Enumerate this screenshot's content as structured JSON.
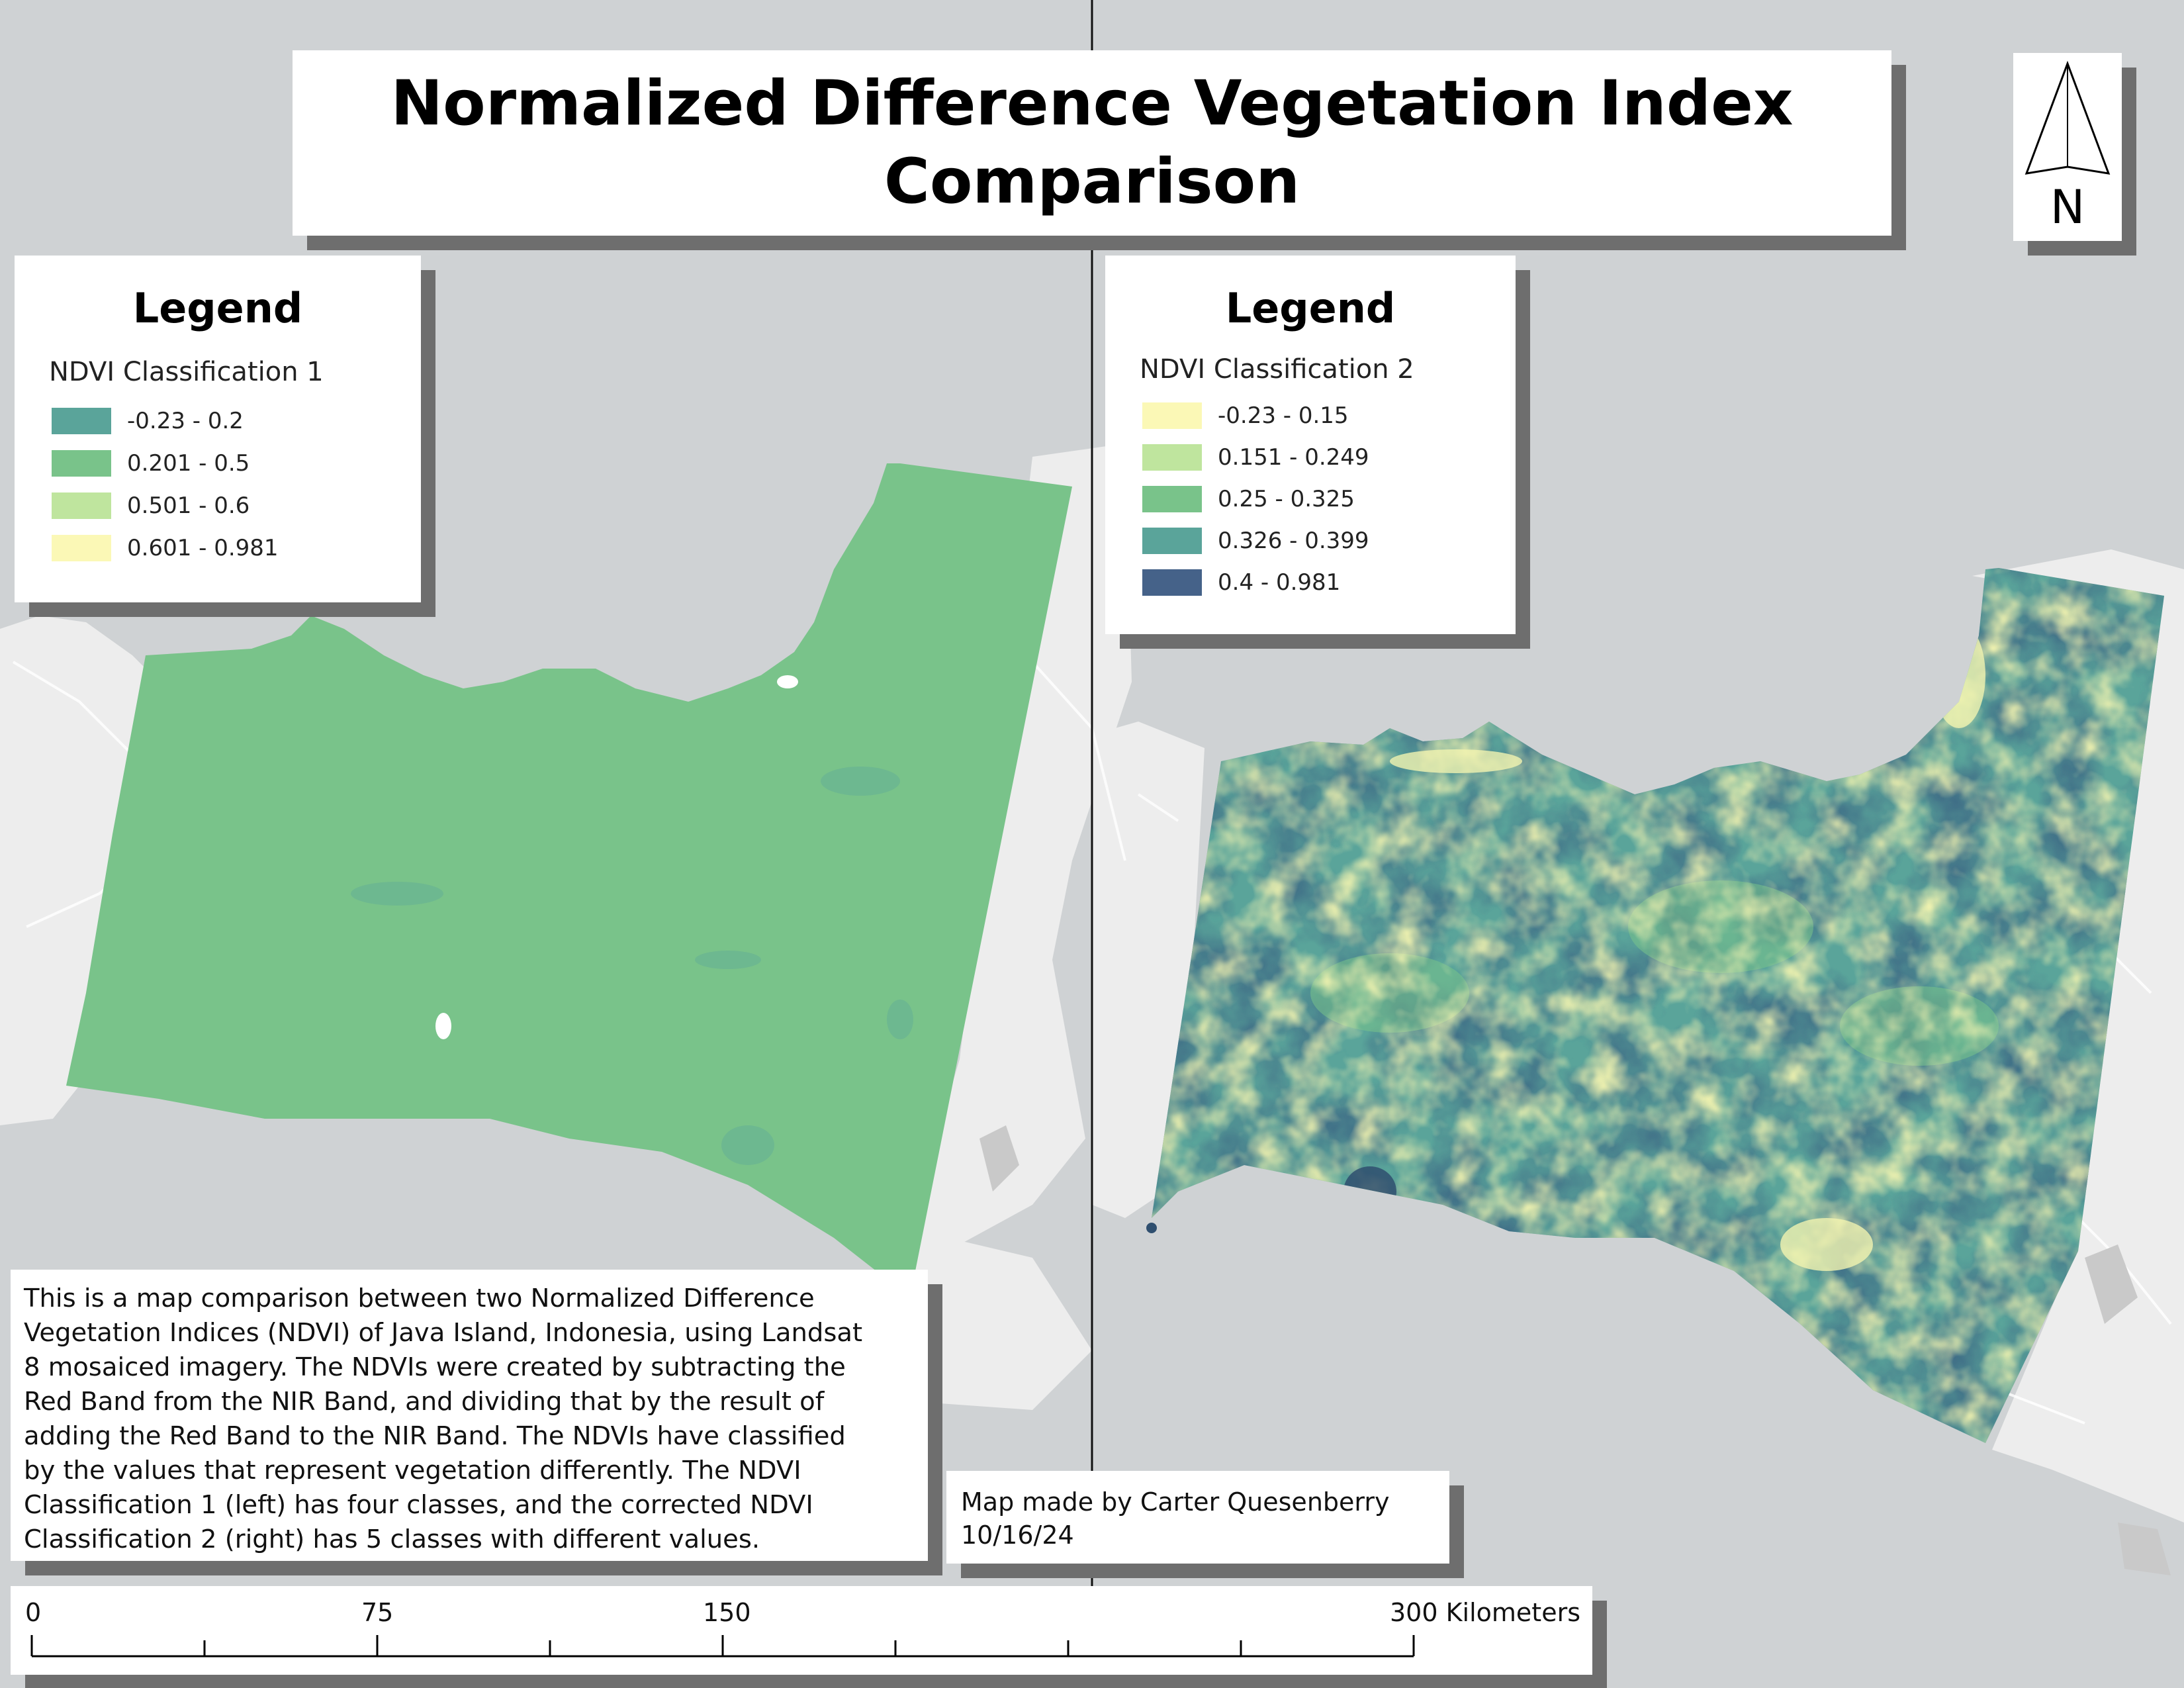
{
  "title": {
    "line1": "Normalized Difference Vegetation Index",
    "line2": "Comparison"
  },
  "north_arrow": {
    "label": "N",
    "icon": "north-arrow-icon"
  },
  "legend_left": {
    "title": "Legend",
    "subtitle": "NDVI Classification 1",
    "items": [
      {
        "label": "-0.23 - 0.2",
        "color": "#5aa49a"
      },
      {
        "label": "0.201 - 0.5",
        "color": "#79c38a"
      },
      {
        "label": "0.501 - 0.6",
        "color": "#bfe59e"
      },
      {
        "label": "0.601 - 0.981",
        "color": "#fbf8b6"
      }
    ]
  },
  "legend_right": {
    "title": "Legend",
    "subtitle": "NDVI Classification 2",
    "items": [
      {
        "label": "-0.23 - 0.15",
        "color": "#fbf8b6"
      },
      {
        "label": "0.151 - 0.249",
        "color": "#bfe59e"
      },
      {
        "label": "0.25 - 0.325",
        "color": "#79c38a"
      },
      {
        "label": "0.326 - 0.399",
        "color": "#5aa49a"
      },
      {
        "label": "0.4 - 0.981",
        "color": "#456289"
      }
    ]
  },
  "description": {
    "lines": [
      "This is a map comparison between two Normalized Difference",
      "Vegetation Indices (NDVI) of Java Island, Indonesia, using Landsat",
      "8 mosaiced imagery. The NDVIs were created by subtracting the",
      "Red Band from the NIR Band, and dividing that by the result of",
      "adding the Red Band to the NIR Band. The NDVIs have classified",
      "by the values that represent vegetation differently. The NDVI",
      "Classification 1 (left) has four classes, and the corrected NDVI",
      "Classification 2 (right) has 5 classes with different values."
    ]
  },
  "credit": {
    "line1": "Map made by Carter Quesenberry",
    "line2": "10/16/24"
  },
  "scale_bar": {
    "labels": [
      "0",
      "75",
      "150",
      "300 Kilometers"
    ]
  },
  "colors": {
    "background": "#cfd2d4",
    "land": "#ededed",
    "raster_uniform": "#79c38a"
  }
}
